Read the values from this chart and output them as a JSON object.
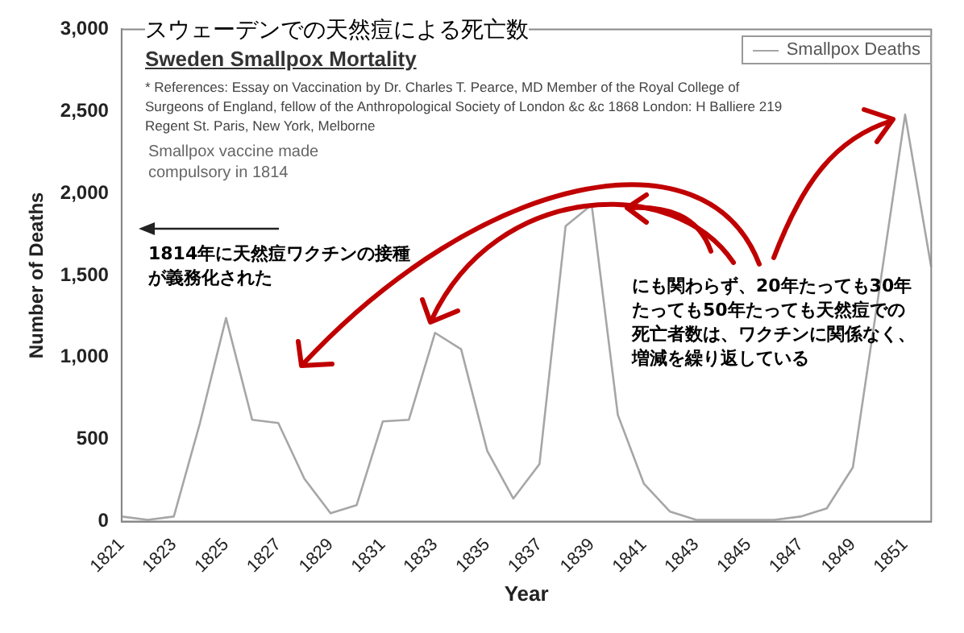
{
  "chart_data": {
    "type": "line",
    "title": "スウェーデンでの天然痘による死亡数",
    "subtitle": "Sweden Smallpox Mortality",
    "xlabel": "Year",
    "ylabel": "Number of Deaths",
    "categories": [
      "1821",
      null,
      "1823",
      null,
      "1825",
      null,
      "1827",
      null,
      "1829",
      null,
      "1831",
      null,
      "1833",
      null,
      "1835",
      null,
      "1837",
      null,
      "1839",
      null,
      "1841",
      null,
      "1843",
      null,
      "1845",
      null,
      "1847",
      null,
      "1849",
      null,
      "1851",
      null
    ],
    "series": [
      {
        "name": "Smallpox Deaths",
        "color": "#a6a6a6",
        "values": [
          30,
          10,
          30,
          600,
          1240,
          620,
          600,
          260,
          50,
          100,
          610,
          620,
          1150,
          1050,
          430,
          140,
          350,
          1800,
          1930,
          650,
          230,
          60,
          10,
          10,
          10,
          10,
          30,
          80,
          330,
          1400,
          2480,
          1550
        ]
      }
    ],
    "ylim": [
      0,
      3000
    ],
    "yticks": [
      0,
      500,
      {
        "value": 1000,
        "label": "1,000"
      },
      {
        "value": 1500,
        "label": "1,500"
      },
      {
        "value": 2000,
        "label": "2,000"
      },
      {
        "value": 2500,
        "label": "2,500"
      },
      {
        "value": 3000,
        "label": "3,000"
      }
    ],
    "grid": false,
    "legend": "top right",
    "marker": "none",
    "line_style": "solid",
    "annotations": [
      "* References: Essay on Vaccination by Dr. Charles T. Pearce, MD Member of the Royal College of Surgeons of England, fellow of the Anthropological Society of London &c &c 1868 London:  H Balliere 219 Regent St. Paris, New York, Melborne",
      "Smallpox vaccine made compulsory in 1814",
      "1814年に天然痘ワクチンの接種が義務化された",
      "にも関わらず、20年たっても30年たっても50年たっても天然痘での死亡者数は、ワクチンに関係なく、増減を繰り返している"
    ]
  }
}
